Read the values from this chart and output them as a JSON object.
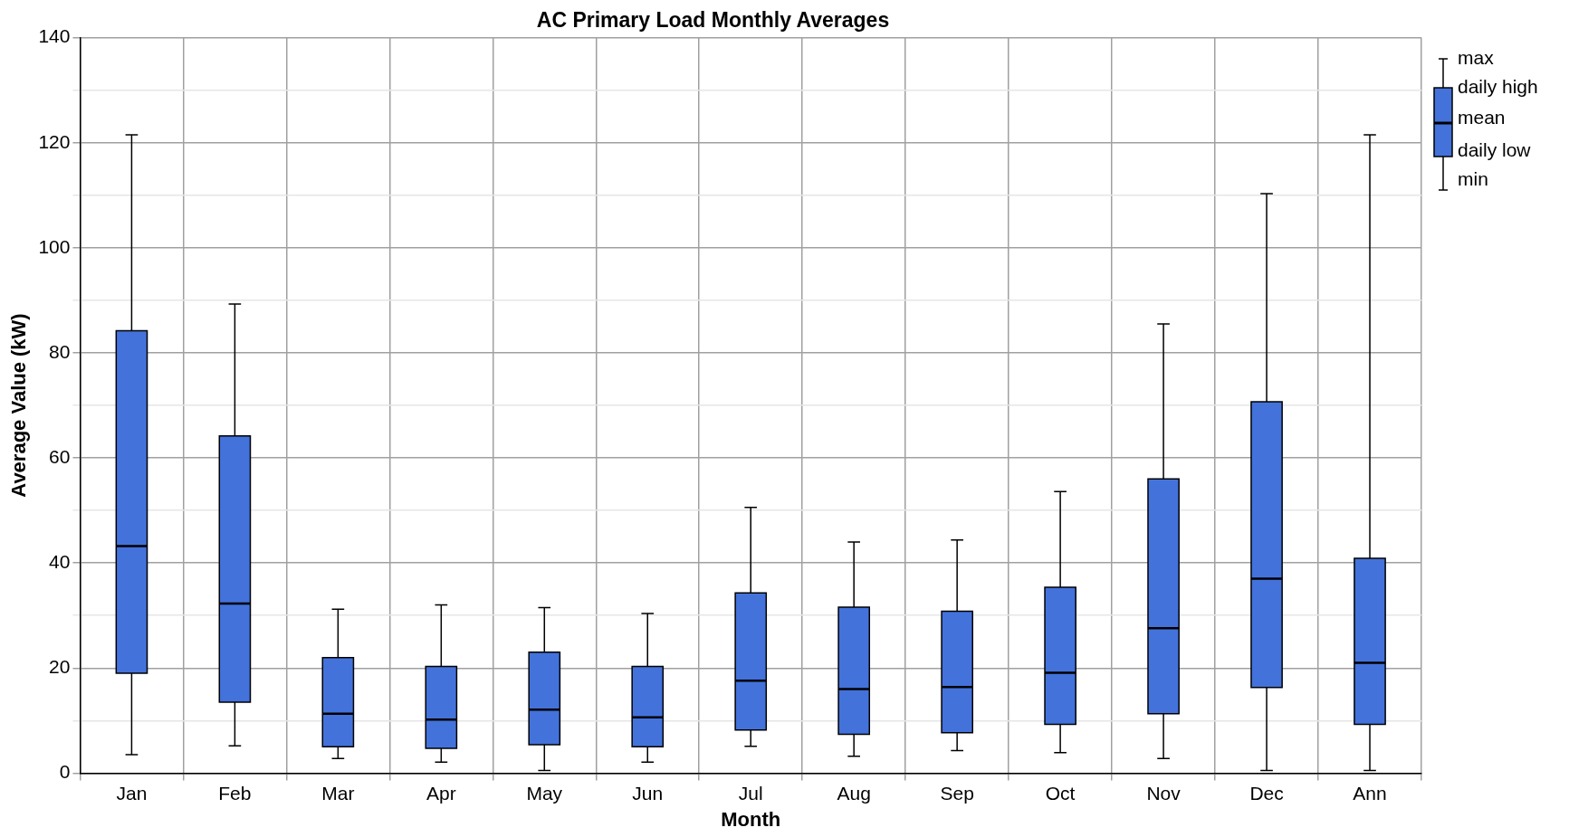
{
  "chart_data": {
    "type": "box",
    "title": "AC Primary Load Monthly Averages",
    "xlabel": "Month",
    "ylabel": "Average Value (kW)",
    "categories": [
      "Jan",
      "Feb",
      "Mar",
      "Apr",
      "May",
      "Jun",
      "Jul",
      "Aug",
      "Sep",
      "Oct",
      "Nov",
      "Dec",
      "Ann"
    ],
    "color": "#4372db",
    "boxes": [
      {
        "low": 3.5,
        "q1": 19,
        "median": 43.2,
        "q3": 84.2,
        "high": 121.5
      },
      {
        "low": 5.2,
        "q1": 13.5,
        "median": 32.3,
        "q3": 64.2,
        "high": 89.3
      },
      {
        "low": 2.8,
        "q1": 5,
        "median": 11.3,
        "q3": 22,
        "high": 31.2
      },
      {
        "low": 2.1,
        "q1": 4.7,
        "median": 10.2,
        "q3": 20.3,
        "high": 32
      },
      {
        "low": 0.5,
        "q1": 5.4,
        "median": 12.1,
        "q3": 23,
        "high": 31.5
      },
      {
        "low": 2.1,
        "q1": 5,
        "median": 10.6,
        "q3": 20.3,
        "high": 30.4
      },
      {
        "low": 5.1,
        "q1": 8.2,
        "median": 17.6,
        "q3": 34.3,
        "high": 50.6
      },
      {
        "low": 3.2,
        "q1": 7.4,
        "median": 16,
        "q3": 31.6,
        "high": 44
      },
      {
        "low": 4.3,
        "q1": 7.7,
        "median": 16.4,
        "q3": 30.8,
        "high": 44.4
      },
      {
        "low": 3.9,
        "q1": 9.3,
        "median": 19.1,
        "q3": 35.4,
        "high": 53.6
      },
      {
        "low": 2.8,
        "q1": 11.3,
        "median": 27.6,
        "q3": 56,
        "high": 85.5
      },
      {
        "low": 0.5,
        "q1": 16.3,
        "median": 37,
        "q3": 70.7,
        "high": 110.3
      },
      {
        "low": 0.5,
        "q1": 9.3,
        "median": 21,
        "q3": 40.9,
        "high": 121.5
      }
    ],
    "ylim": [
      0,
      140
    ],
    "yticks": [
      0,
      {
        "value": 10,
        "label": null
      },
      20,
      {
        "value": 30,
        "label": null
      },
      40,
      {
        "value": 50,
        "label": null
      },
      60,
      {
        "value": 70,
        "label": null
      },
      80,
      {
        "value": 90,
        "label": null
      },
      100,
      {
        "value": 110,
        "label": null
      },
      120,
      {
        "value": 130,
        "label": null
      },
      140
    ],
    "grid": true,
    "annotations": [
      "max",
      "daily high",
      "mean",
      "daily low",
      "min"
    ]
  }
}
